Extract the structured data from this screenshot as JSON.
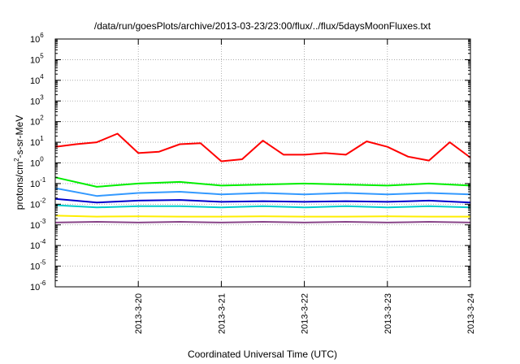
{
  "chart_data": {
    "type": "line",
    "title": "/data/run/goesPlots/archive/2013-03-23/23:00/flux/../flux/5daysMoonFluxes.txt",
    "xlabel": "Coordinated Universal Time (UTC)",
    "ylabel": {
      "prefix": "protons/cm",
      "sup": "2",
      "suffix": "-s-sr-MeV"
    },
    "x_ticks": [
      "2013-3-20",
      "2013-3-21",
      "2013-3-22",
      "2013-3-23",
      "2013-3-24"
    ],
    "xlim": [
      "2013-3-19",
      "2013-3-24"
    ],
    "y_scale": "log",
    "ylim": [
      1e-06,
      1000000.0
    ],
    "y_ticks": [
      {
        "base": "10",
        "exp": "-6"
      },
      {
        "base": "10",
        "exp": "-5"
      },
      {
        "base": "10",
        "exp": "-4"
      },
      {
        "base": "10",
        "exp": "-3"
      },
      {
        "base": "10",
        "exp": "-2"
      },
      {
        "base": "10",
        "exp": "-1"
      },
      {
        "base": "10",
        "exp": "0"
      },
      {
        "base": "10",
        "exp": "1"
      },
      {
        "base": "10",
        "exp": "2"
      },
      {
        "base": "10",
        "exp": "3"
      },
      {
        "base": "10",
        "exp": "4"
      },
      {
        "base": "10",
        "exp": "5"
      },
      {
        "base": "10",
        "exp": "6"
      }
    ],
    "grid": true,
    "legend": "none",
    "series": [
      {
        "color": "#ff0000",
        "x": [
          "2013-3-19 00:00",
          "2013-3-19 06:00",
          "2013-3-19 12:00",
          "2013-3-19 18:00",
          "2013-3-20 00:00",
          "2013-3-20 06:00",
          "2013-3-20 12:00",
          "2013-3-20 18:00",
          "2013-3-21 00:00",
          "2013-3-21 06:00",
          "2013-3-21 12:00",
          "2013-3-21 18:00",
          "2013-3-22 00:00",
          "2013-3-22 06:00",
          "2013-3-22 12:00",
          "2013-3-22 18:00",
          "2013-3-23 00:00",
          "2013-3-23 06:00",
          "2013-3-23 12:00",
          "2013-3-23 18:00",
          "2013-3-24 00:00"
        ],
        "values": [
          6.0,
          8.0,
          10.0,
          26.0,
          3.0,
          3.5,
          8.0,
          9.0,
          1.2,
          1.5,
          12.0,
          2.5,
          2.5,
          3.0,
          2.5,
          11.0,
          6.0,
          2.0,
          1.3,
          10.0,
          1.8
        ]
      },
      {
        "color": "#00ee00",
        "x": [
          "2013-3-19 00:00",
          "2013-3-19 12:00",
          "2013-3-20 00:00",
          "2013-3-20 12:00",
          "2013-3-21 00:00",
          "2013-3-21 12:00",
          "2013-3-22 00:00",
          "2013-3-22 12:00",
          "2013-3-23 00:00",
          "2013-3-23 12:00",
          "2013-3-24 00:00"
        ],
        "values": [
          0.2,
          0.07,
          0.1,
          0.12,
          0.08,
          0.09,
          0.1,
          0.09,
          0.08,
          0.1,
          0.08
        ]
      },
      {
        "color": "#3399ff",
        "x": [
          "2013-3-19 00:00",
          "2013-3-19 12:00",
          "2013-3-20 00:00",
          "2013-3-20 12:00",
          "2013-3-21 00:00",
          "2013-3-21 12:00",
          "2013-3-22 00:00",
          "2013-3-22 12:00",
          "2013-3-23 00:00",
          "2013-3-23 12:00",
          "2013-3-24 00:00"
        ],
        "values": [
          0.06,
          0.025,
          0.035,
          0.04,
          0.03,
          0.035,
          0.03,
          0.035,
          0.03,
          0.035,
          0.03
        ]
      },
      {
        "color": "#0000cc",
        "x": [
          "2013-3-19 00:00",
          "2013-3-19 12:00",
          "2013-3-20 00:00",
          "2013-3-20 12:00",
          "2013-3-21 00:00",
          "2013-3-21 12:00",
          "2013-3-22 00:00",
          "2013-3-22 12:00",
          "2013-3-23 00:00",
          "2013-3-23 12:00",
          "2013-3-24 00:00"
        ],
        "values": [
          0.018,
          0.012,
          0.015,
          0.016,
          0.013,
          0.014,
          0.013,
          0.014,
          0.013,
          0.015,
          0.012
        ]
      },
      {
        "color": "#00cccc",
        "x": [
          "2013-3-19 00:00",
          "2013-3-19 12:00",
          "2013-3-20 00:00",
          "2013-3-20 12:00",
          "2013-3-21 00:00",
          "2013-3-21 12:00",
          "2013-3-22 00:00",
          "2013-3-22 12:00",
          "2013-3-23 00:00",
          "2013-3-23 12:00",
          "2013-3-24 00:00"
        ],
        "values": [
          0.009,
          0.007,
          0.008,
          0.008,
          0.007,
          0.008,
          0.007,
          0.008,
          0.007,
          0.008,
          0.007
        ]
      },
      {
        "color": "#ffee00",
        "x": [
          "2013-3-19 00:00",
          "2013-3-19 12:00",
          "2013-3-20 00:00",
          "2013-3-20 12:00",
          "2013-3-21 00:00",
          "2013-3-21 12:00",
          "2013-3-22 00:00",
          "2013-3-22 12:00",
          "2013-3-23 00:00",
          "2013-3-23 12:00",
          "2013-3-24 00:00"
        ],
        "values": [
          0.0028,
          0.0025,
          0.0026,
          0.0025,
          0.0025,
          0.0026,
          0.0025,
          0.0025,
          0.0026,
          0.0025,
          0.0025
        ]
      },
      {
        "color": "#884488",
        "x": [
          "2013-3-19 00:00",
          "2013-3-19 12:00",
          "2013-3-20 00:00",
          "2013-3-20 12:00",
          "2013-3-21 00:00",
          "2013-3-21 12:00",
          "2013-3-22 00:00",
          "2013-3-22 12:00",
          "2013-3-23 00:00",
          "2013-3-23 12:00",
          "2013-3-24 00:00"
        ],
        "values": [
          0.0013,
          0.0014,
          0.0013,
          0.0014,
          0.0013,
          0.0014,
          0.0013,
          0.0014,
          0.0013,
          0.0014,
          0.0013
        ]
      }
    ]
  }
}
